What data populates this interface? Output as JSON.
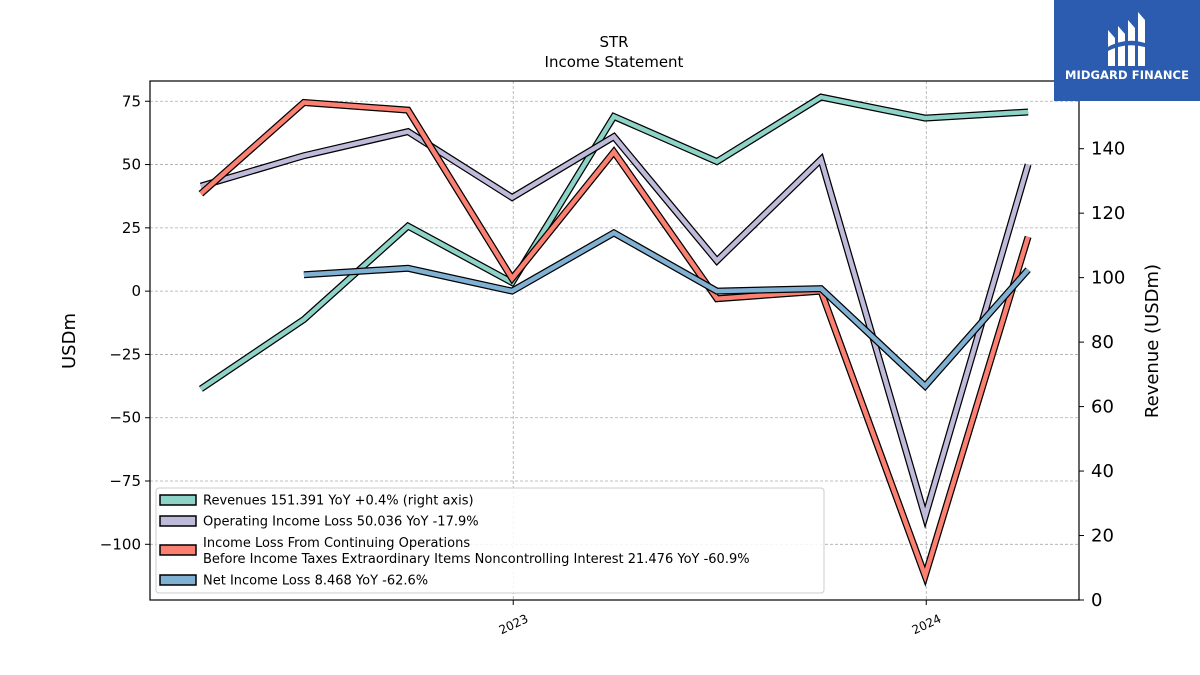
{
  "chart_data": {
    "type": "line",
    "title": "STR",
    "subtitle": "Income Statement",
    "ylabel": "USDm",
    "y2label": "Revenue (USDm)",
    "ylim": [
      -122,
      83
    ],
    "y2lim": [
      0,
      161
    ],
    "yticks": [
      "75",
      "50",
      "25",
      "0",
      "−25",
      "−50",
      "−75",
      "−100"
    ],
    "yticks_values": [
      75,
      50,
      25,
      0,
      -25,
      -50,
      -75,
      -100
    ],
    "y2ticks": [
      "0",
      "20",
      "40",
      "60",
      "80",
      "100",
      "120",
      "140"
    ],
    "y2ticks_values": [
      0,
      20,
      40,
      60,
      80,
      100,
      120,
      140
    ],
    "xlim": [
      "2022-02-14",
      "2024-05-15"
    ],
    "xticks": [
      "2023",
      "2024"
    ],
    "xticks_dates": [
      "2023-01-01",
      "2024-01-01"
    ],
    "grid": true,
    "legend_position": "bottom-left",
    "series": [
      {
        "name": "Revenues  151.391 YoY +0.4% (right axis)",
        "axis": "right",
        "color": "#8dd3c7",
        "points": [
          [
            "2022-03-31",
            65.5
          ],
          [
            "2022-06-30",
            87.0
          ],
          [
            "2022-09-30",
            116.0
          ],
          [
            "2022-12-31",
            98.5
          ],
          [
            "2023-03-31",
            150.0
          ],
          [
            "2023-06-30",
            136.0
          ],
          [
            "2023-09-30",
            156.0
          ],
          [
            "2023-12-31",
            149.5
          ],
          [
            "2024-03-31",
            151.391
          ]
        ]
      },
      {
        "name": "Operating Income Loss  50.036 YoY -17.9%",
        "axis": "left",
        "color": "#bebada",
        "points": [
          [
            "2022-03-31",
            41.5
          ],
          [
            "2022-06-30",
            53.5
          ],
          [
            "2022-09-30",
            63.0
          ],
          [
            "2022-12-31",
            37.0
          ],
          [
            "2023-03-31",
            61.0
          ],
          [
            "2023-06-30",
            12.0
          ],
          [
            "2023-09-30",
            52.0
          ],
          [
            "2023-12-31",
            -89.0
          ],
          [
            "2024-03-31",
            50.036
          ]
        ]
      },
      {
        "name": "Income Loss From Continuing Operations\nBefore Income Taxes Extraordinary Items Noncontrolling Interest  21.476 YoY -60.9%",
        "axis": "left",
        "color": "#fb8072",
        "points": [
          [
            "2022-03-31",
            38.5
          ],
          [
            "2022-06-30",
            74.5
          ],
          [
            "2022-09-30",
            71.5
          ],
          [
            "2022-12-31",
            5.0
          ],
          [
            "2023-03-31",
            55.0
          ],
          [
            "2023-06-30",
            -3.0
          ],
          [
            "2023-09-30",
            0.0
          ],
          [
            "2023-12-31",
            -112.5
          ],
          [
            "2024-03-31",
            21.476
          ]
        ]
      },
      {
        "name": "Net Income Loss  8.468 YoY -62.6%",
        "axis": "left",
        "color": "#80b1d3",
        "points": [
          [
            "2022-06-30",
            6.5
          ],
          [
            "2022-09-30",
            9.0
          ],
          [
            "2022-12-31",
            0.0
          ],
          [
            "2023-03-31",
            23.0
          ],
          [
            "2023-06-30",
            0.0
          ],
          [
            "2023-09-30",
            1.0
          ],
          [
            "2023-12-31",
            -37.5
          ],
          [
            "2024-03-31",
            8.468
          ]
        ]
      }
    ]
  },
  "logo": {
    "text": "MIDGARD FINANCE"
  }
}
